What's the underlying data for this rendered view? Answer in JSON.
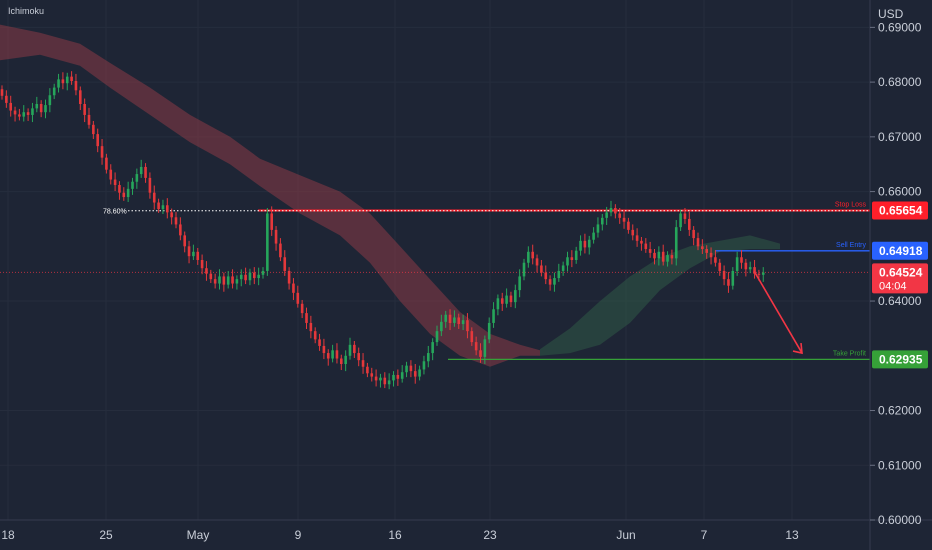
{
  "indicator": "Ichimoku",
  "currency": "USD",
  "colors": {
    "background": "#1e2535",
    "up_candle": "#26a65b",
    "down_candle": "#e5383b",
    "stop_loss": "#ff1f2a",
    "sell_entry": "#2962ff",
    "take_profit": "#36a138",
    "fib": "#ffffff",
    "cloud_bear": "#8a3a45",
    "cloud_bull": "#2f5a45",
    "current_price": "#f23645",
    "axis_text": "#c9ced8"
  },
  "chart_data": {
    "type": "candlestick",
    "ylim": [
      0.6,
      0.695
    ],
    "y_ticks": [
      "0.69000",
      "0.68000",
      "0.67000",
      "0.66000",
      "0.64000",
      "0.62000",
      "0.61000",
      "0.60000"
    ],
    "x_ticks": [
      "18",
      "25",
      "May",
      "9",
      "16",
      "23",
      "Jun",
      "7",
      "13"
    ],
    "fib_level": {
      "label": "78.60%",
      "value": 0.6565
    },
    "levels": [
      {
        "key": "stop_loss",
        "label": "Stop Loss",
        "value": 0.65654,
        "badge": "0.65654"
      },
      {
        "key": "sell_entry",
        "label": "Sell Entry",
        "value": 0.64918,
        "badge": "0.64918"
      },
      {
        "key": "take_profit",
        "label": "Take Profit",
        "value": 0.62935,
        "badge": "0.62935"
      }
    ],
    "current_price": {
      "value": 0.64524,
      "badge": "0.64524",
      "countdown": "04:04"
    },
    "forecast_arrow": {
      "direction": "down",
      "from_value": 0.6455,
      "to_value": 0.6305
    },
    "candles_close": [
      0.6775,
      0.6762,
      0.6748,
      0.6741,
      0.6737,
      0.6745,
      0.674,
      0.6752,
      0.676,
      0.6745,
      0.6758,
      0.6776,
      0.679,
      0.6805,
      0.6798,
      0.681,
      0.6802,
      0.6785,
      0.676,
      0.674,
      0.6722,
      0.6705,
      0.6683,
      0.6662,
      0.664,
      0.6622,
      0.6612,
      0.6598,
      0.659,
      0.6605,
      0.6618,
      0.6632,
      0.6645,
      0.6625,
      0.6598,
      0.658,
      0.6568,
      0.6575,
      0.6562,
      0.6553,
      0.654,
      0.652,
      0.65,
      0.6482,
      0.649,
      0.6475,
      0.646,
      0.645,
      0.644,
      0.6432,
      0.6445,
      0.643,
      0.6445,
      0.6432,
      0.644,
      0.6448,
      0.6438,
      0.6452,
      0.6442,
      0.6448,
      0.6455,
      0.656,
      0.653,
      0.6505,
      0.648,
      0.6455,
      0.6432,
      0.6415,
      0.6395,
      0.6378,
      0.636,
      0.6345,
      0.633,
      0.6318,
      0.6305,
      0.6295,
      0.631,
      0.6295,
      0.6285,
      0.63,
      0.632,
      0.6305,
      0.6292,
      0.628,
      0.6268,
      0.6262,
      0.6255,
      0.626,
      0.6248,
      0.6255,
      0.6265,
      0.6258,
      0.627,
      0.6282,
      0.6272,
      0.6262,
      0.6275,
      0.629,
      0.6305,
      0.6325,
      0.6345,
      0.6362,
      0.6375,
      0.636,
      0.637,
      0.6358,
      0.6365,
      0.6345,
      0.6325,
      0.631,
      0.6298,
      0.633,
      0.636,
      0.6385,
      0.6405,
      0.6395,
      0.641,
      0.6398,
      0.642,
      0.6445,
      0.647,
      0.649,
      0.6478,
      0.6465,
      0.6452,
      0.644,
      0.643,
      0.6442,
      0.6455,
      0.6465,
      0.648,
      0.6475,
      0.6492,
      0.651,
      0.6498,
      0.6512,
      0.6525,
      0.654,
      0.6552,
      0.6562,
      0.657,
      0.656,
      0.6552,
      0.6545,
      0.653,
      0.652,
      0.651,
      0.6505,
      0.6495,
      0.6488,
      0.6478,
      0.649,
      0.6472,
      0.6484,
      0.6478,
      0.6535,
      0.656,
      0.655,
      0.653,
      0.6515,
      0.65,
      0.6495,
      0.6488,
      0.648,
      0.647,
      0.6455,
      0.644,
      0.6428,
      0.6455,
      0.648,
      0.647,
      0.6458,
      0.6462,
      0.645,
      0.6448,
      0.6452
    ]
  }
}
